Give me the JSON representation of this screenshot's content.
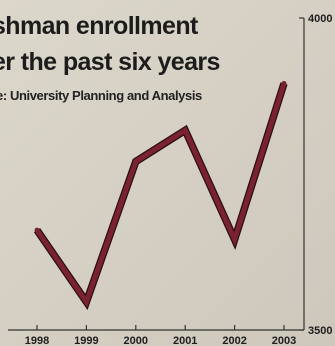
{
  "chart_data": {
    "type": "line",
    "title_lines": [
      "shman enrollment",
      "er the past six years"
    ],
    "source": "e: University Planning and Analysis",
    "categories": [
      "1998",
      "1999",
      "2000",
      "2001",
      "2002",
      "2003"
    ],
    "values": [
      3660,
      3545,
      3770,
      3820,
      3645,
      3895
    ],
    "ylim": [
      3500,
      4000
    ],
    "y_ticks": [
      "4000",
      "3500"
    ],
    "line_color": "#7a2230",
    "grid": false
  }
}
